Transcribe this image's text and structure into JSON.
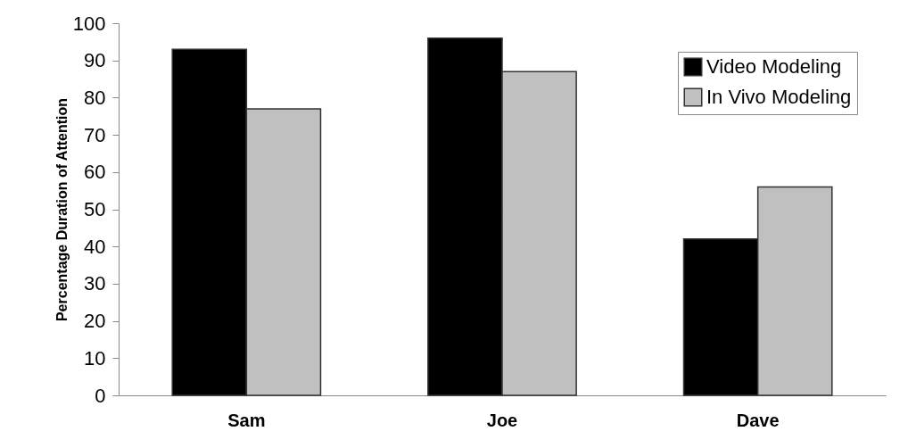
{
  "chart_data": {
    "type": "bar",
    "ylabel": "Percentage Duration of Attention",
    "categories": [
      "Sam",
      "Joe",
      "Dave"
    ],
    "series": [
      {
        "name": "Video Modeling",
        "color": "#000000",
        "values": [
          93,
          96,
          42
        ]
      },
      {
        "name": "In Vivo Modeling",
        "color": "#c0c0c0",
        "values": [
          77,
          87,
          56
        ]
      }
    ],
    "ylim": [
      0,
      100
    ],
    "yticks": [
      0,
      10,
      20,
      30,
      40,
      50,
      60,
      70,
      80,
      90,
      100
    ],
    "grid": false,
    "legend": "top right"
  }
}
